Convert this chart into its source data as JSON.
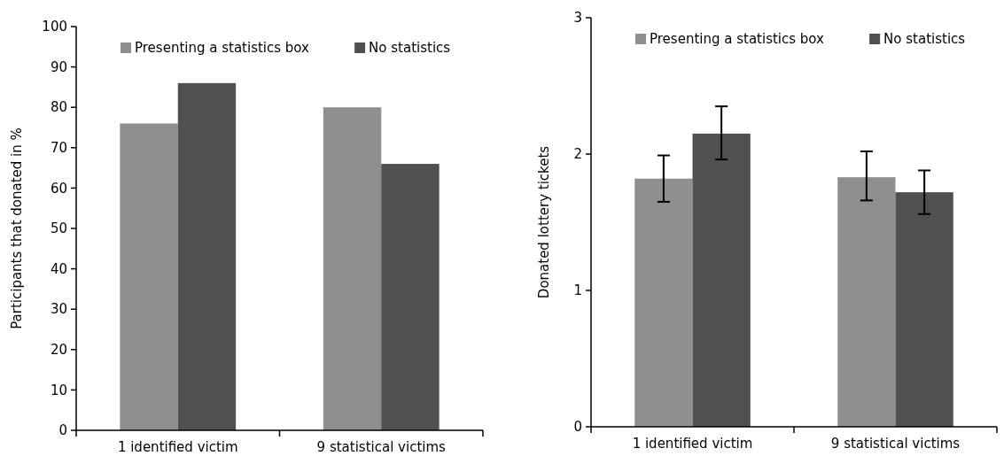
{
  "chart_data": [
    {
      "type": "bar",
      "ylabel": "Participants that donated in %",
      "categories": [
        "1 identified victim",
        "9 statistical victims"
      ],
      "series": [
        {
          "name": "Presenting a statistics box",
          "color": "#8f8f8f",
          "values": [
            76,
            80
          ]
        },
        {
          "name": "No statistics",
          "color": "#505050",
          "values": [
            86,
            66
          ]
        }
      ],
      "ylim": [
        0,
        100
      ],
      "yticks": [
        0,
        10,
        20,
        30,
        40,
        50,
        60,
        70,
        80,
        90,
        100
      ],
      "legend": "top"
    },
    {
      "type": "bar",
      "ylabel": "Donated lottery tickets",
      "categories": [
        "1 identified victim",
        "9 statistical victims"
      ],
      "series": [
        {
          "name": "Presenting a statistics box",
          "color": "#8f8f8f",
          "values": [
            1.82,
            1.83
          ],
          "errors": [
            [
              1.65,
              1.99
            ],
            [
              1.66,
              2.02
            ]
          ]
        },
        {
          "name": "No statistics",
          "color": "#505050",
          "values": [
            2.15,
            1.72
          ],
          "errors": [
            [
              1.96,
              2.35
            ],
            [
              1.56,
              1.88
            ]
          ]
        }
      ],
      "ylim": [
        0,
        3
      ],
      "yticks": [
        0,
        1,
        2,
        3
      ],
      "legend": "top"
    }
  ]
}
